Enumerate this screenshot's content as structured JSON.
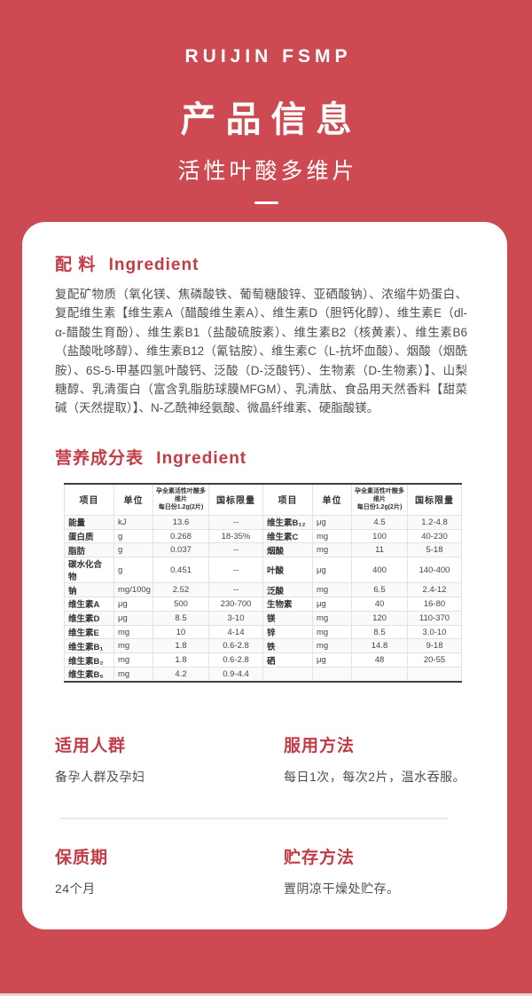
{
  "colors": {
    "background": "#CD4A52",
    "accent": "#C23B46",
    "card": "#FFFFFF",
    "body_text": "#4F4F4F"
  },
  "header": {
    "brand": "RUIJIN FSMP",
    "title": "产品信息",
    "subtitle": "活性叶酸多维片"
  },
  "ingredient_section": {
    "title_zh": "配 料",
    "title_en": "Ingredient",
    "text": "复配矿物质（氧化镁、焦磷酸铁、葡萄糖酸锌、亚硒酸钠）、浓缩牛奶蛋白、复配维生素【维生素A（醋酸维生素A）、维生素D（胆钙化醇）、维生素E（dl-α-醋酸生育酚）、维生素B1（盐酸硫胺素）、维生素B2（核黄素）、维生素B6（盐酸吡哆醇）、维生素B12（氰钴胺）、维生素C（L-抗坏血酸）、烟酸（烟酰胺）、6S-5-甲基四氢叶酸钙、泛酸（D-泛酸钙）、生物素（D-生物素）】、山梨糖醇、乳清蛋白（富含乳脂肪球膜MFGM）、乳清肽、食品用天然香料【甜菜碱（天然提取）】、N-乙酰神经氨酸、微晶纤维素、硬脂酸镁。"
  },
  "nutrition_section": {
    "title_zh": "营养成分表",
    "title_en": "Ingredient"
  },
  "nutrition_table": {
    "headers": [
      "项目",
      "单位",
      "孕全素活性叶酸多维片\n每日份1.2g(2片)",
      "国标限量"
    ],
    "left_rows": [
      [
        "能量",
        "kJ",
        "13.6",
        "--"
      ],
      [
        "蛋白质",
        "g",
        "0.268",
        "18-35%"
      ],
      [
        "脂肪",
        "g",
        "0.037",
        "--"
      ],
      [
        "碳水化合物",
        "g",
        "0.451",
        "--"
      ],
      [
        "钠",
        "mg/100g",
        "2.52",
        "--"
      ],
      [
        "维生素A",
        "μg",
        "500",
        "230-700"
      ],
      [
        "维生素D",
        "μg",
        "8.5",
        "3-10"
      ],
      [
        "维生素E",
        "mg",
        "10",
        "4-14"
      ],
      [
        "维生素B₁",
        "mg",
        "1.8",
        "0.6-2.8"
      ],
      [
        "维生素B₂",
        "mg",
        "1.8",
        "0.6-2.8"
      ],
      [
        "维生素B₆",
        "mg",
        "4.2",
        "0.9-4.4"
      ]
    ],
    "right_rows": [
      [
        "维生素B₁₂",
        "μg",
        "4.5",
        "1.2-4.8"
      ],
      [
        "维生素C",
        "mg",
        "100",
        "40-230"
      ],
      [
        "烟酸",
        "mg",
        "11",
        "5-18"
      ],
      [
        "叶酸",
        "μg",
        "400",
        "140-400"
      ],
      [
        "泛酸",
        "mg",
        "6.5",
        "2.4-12"
      ],
      [
        "生物素",
        "μg",
        "40",
        "16-80"
      ],
      [
        "镁",
        "mg",
        "120",
        "110-370"
      ],
      [
        "锌",
        "mg",
        "8.5",
        "3.0-10"
      ],
      [
        "铁",
        "mg",
        "14.8",
        "9-18"
      ],
      [
        "硒",
        "μg",
        "48",
        "20-55"
      ],
      [
        "",
        "",
        "",
        ""
      ]
    ]
  },
  "info_blocks": [
    {
      "title": "适用人群",
      "text": "备孕人群及孕妇"
    },
    {
      "title": "服用方法",
      "text": "每日1次，每次2片，温水吞服。"
    },
    {
      "title": "保质期",
      "text": "24个月"
    },
    {
      "title": "贮存方法",
      "text": "置阴凉干燥处贮存。"
    }
  ]
}
